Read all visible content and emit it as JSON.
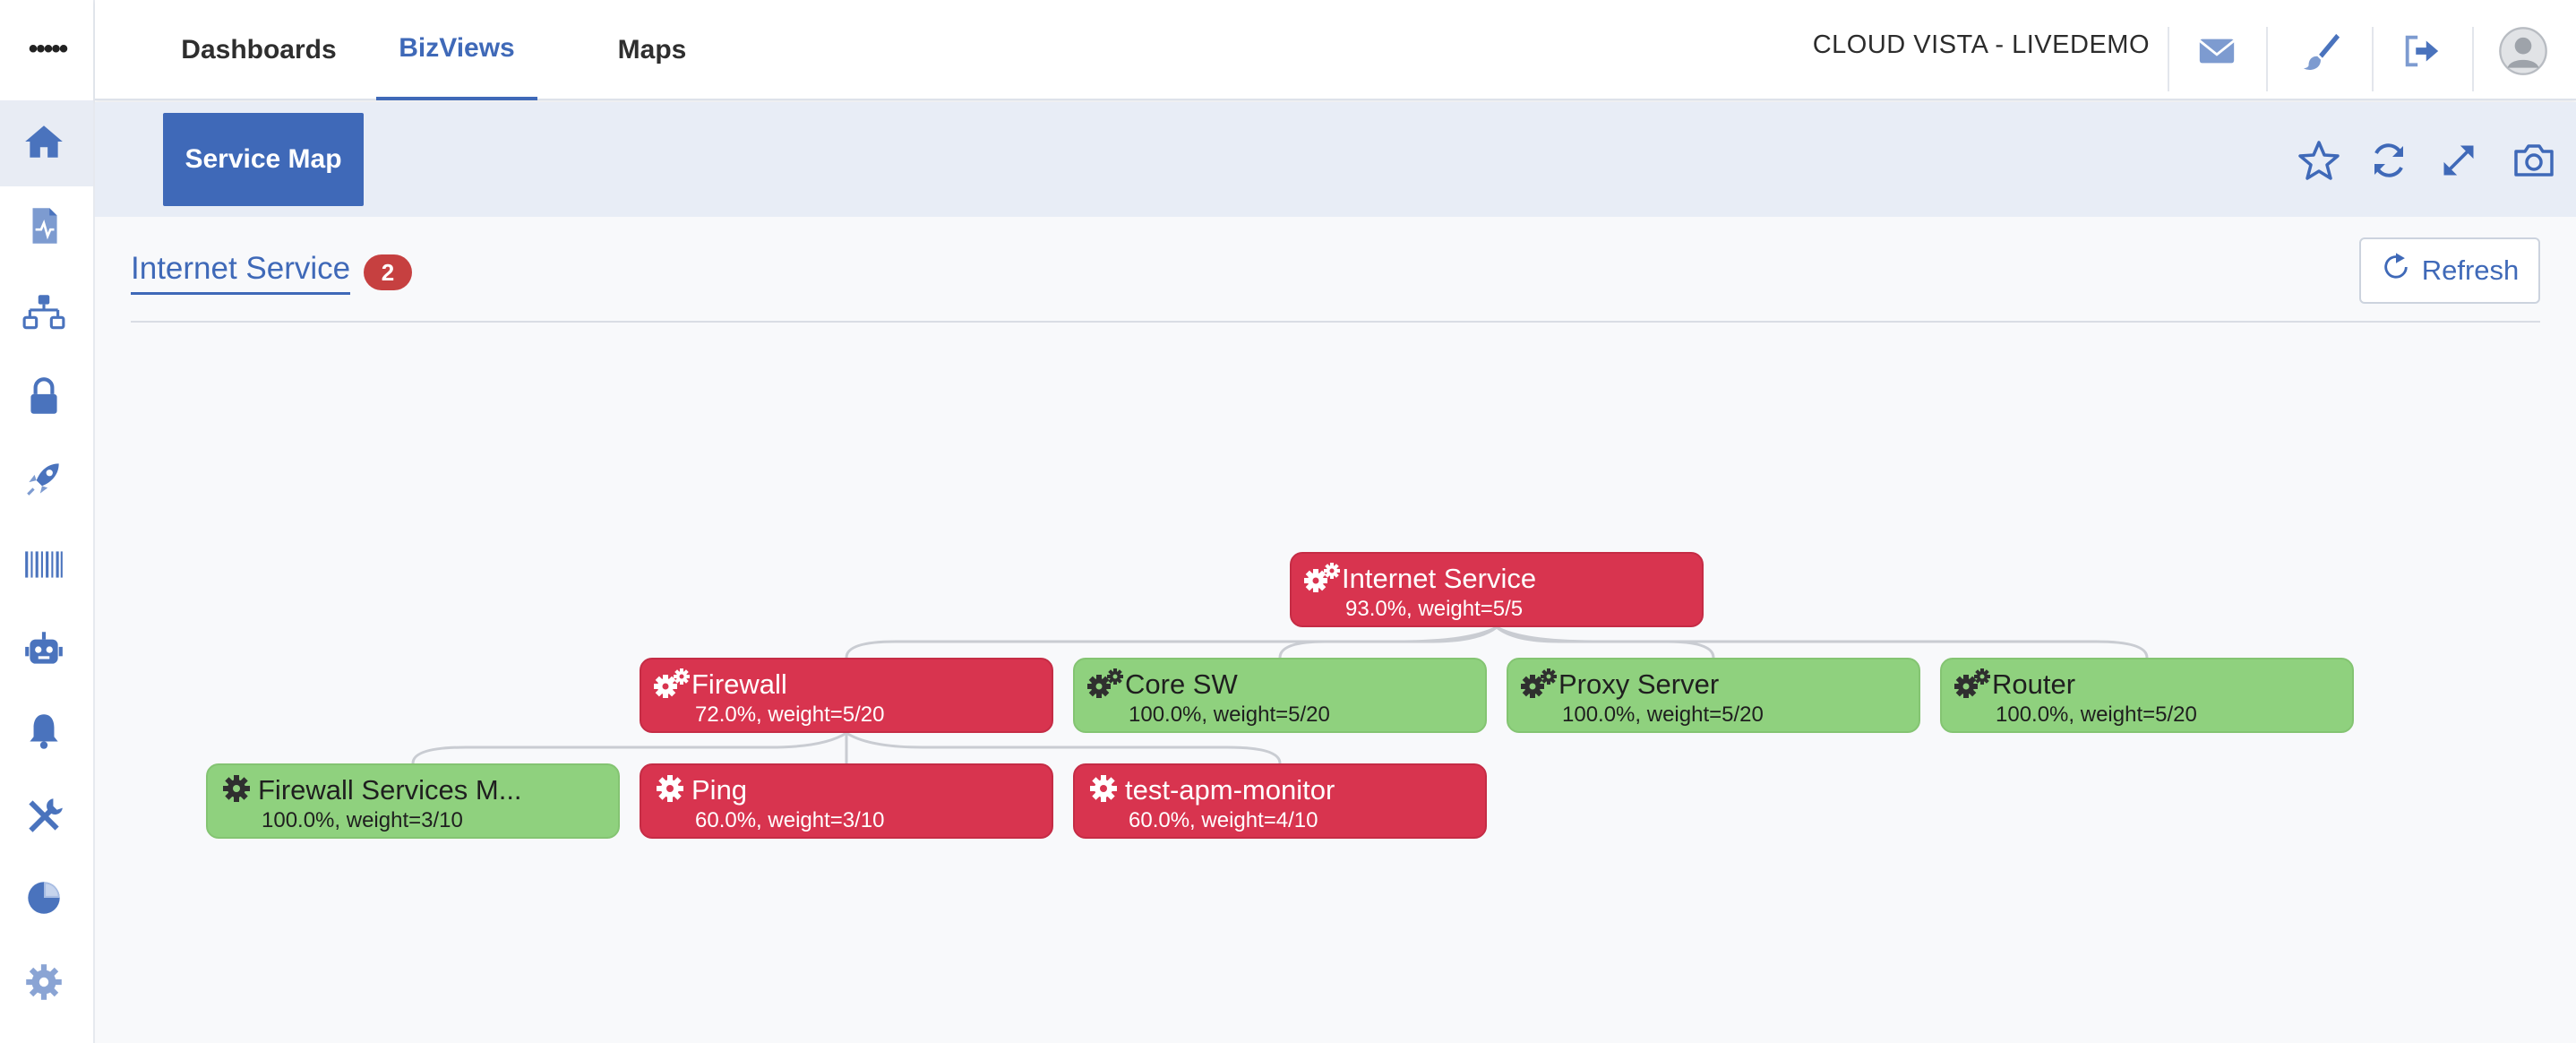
{
  "sidebar": {
    "menu_glyph": "•••••",
    "items": [
      {
        "icon": "home-icon"
      },
      {
        "icon": "report-icon"
      },
      {
        "icon": "network-icon"
      },
      {
        "icon": "lock-icon"
      },
      {
        "icon": "rocket-icon"
      },
      {
        "icon": "barcode-icon"
      },
      {
        "icon": "robot-icon"
      },
      {
        "icon": "bell-icon"
      },
      {
        "icon": "tools-icon"
      },
      {
        "icon": "pie-chart-icon"
      },
      {
        "icon": "gear-icon"
      }
    ]
  },
  "topbar": {
    "tabs": [
      {
        "label": "Dashboards",
        "active": false
      },
      {
        "label": "BizViews",
        "active": true
      },
      {
        "label": "Maps",
        "active": false
      }
    ],
    "brand": "CLOUD VISTA - LIVEDEMO",
    "icons": [
      "mail-icon",
      "brush-icon",
      "logout-icon",
      "user-avatar"
    ]
  },
  "subheader": {
    "active_view": "Service Map",
    "icons": [
      "star-icon",
      "sync-icon",
      "expand-icon",
      "camera-icon"
    ]
  },
  "content": {
    "title": "Internet Service",
    "badge": "2",
    "refresh_label": "Refresh"
  },
  "tree": {
    "root": {
      "name": "Internet Service",
      "stat": "93.0%, weight=5/5",
      "status": "red",
      "icon": "gears-icon"
    },
    "level1": [
      {
        "name": "Firewall",
        "stat": "72.0%, weight=5/20",
        "status": "red",
        "icon": "gears-icon"
      },
      {
        "name": "Core SW",
        "stat": "100.0%, weight=5/20",
        "status": "green",
        "icon": "gears-icon"
      },
      {
        "name": "Proxy Server",
        "stat": "100.0%, weight=5/20",
        "status": "green",
        "icon": "gears-icon"
      },
      {
        "name": "Router",
        "stat": "100.0%, weight=5/20",
        "status": "green",
        "icon": "gears-icon"
      }
    ],
    "level2": [
      {
        "name": "Firewall Services M...",
        "stat": "100.0%, weight=3/10",
        "status": "green",
        "icon": "gear-icon"
      },
      {
        "name": "Ping",
        "stat": "60.0%, weight=3/10",
        "status": "red",
        "icon": "gear-icon"
      },
      {
        "name": "test-apm-monitor",
        "stat": "60.0%, weight=4/10",
        "status": "red",
        "icon": "gear-icon"
      }
    ]
  },
  "colors": {
    "accent": "#3f69b8",
    "critical": "#d8344f",
    "ok": "#8fd17e",
    "badge": "#c64040"
  }
}
